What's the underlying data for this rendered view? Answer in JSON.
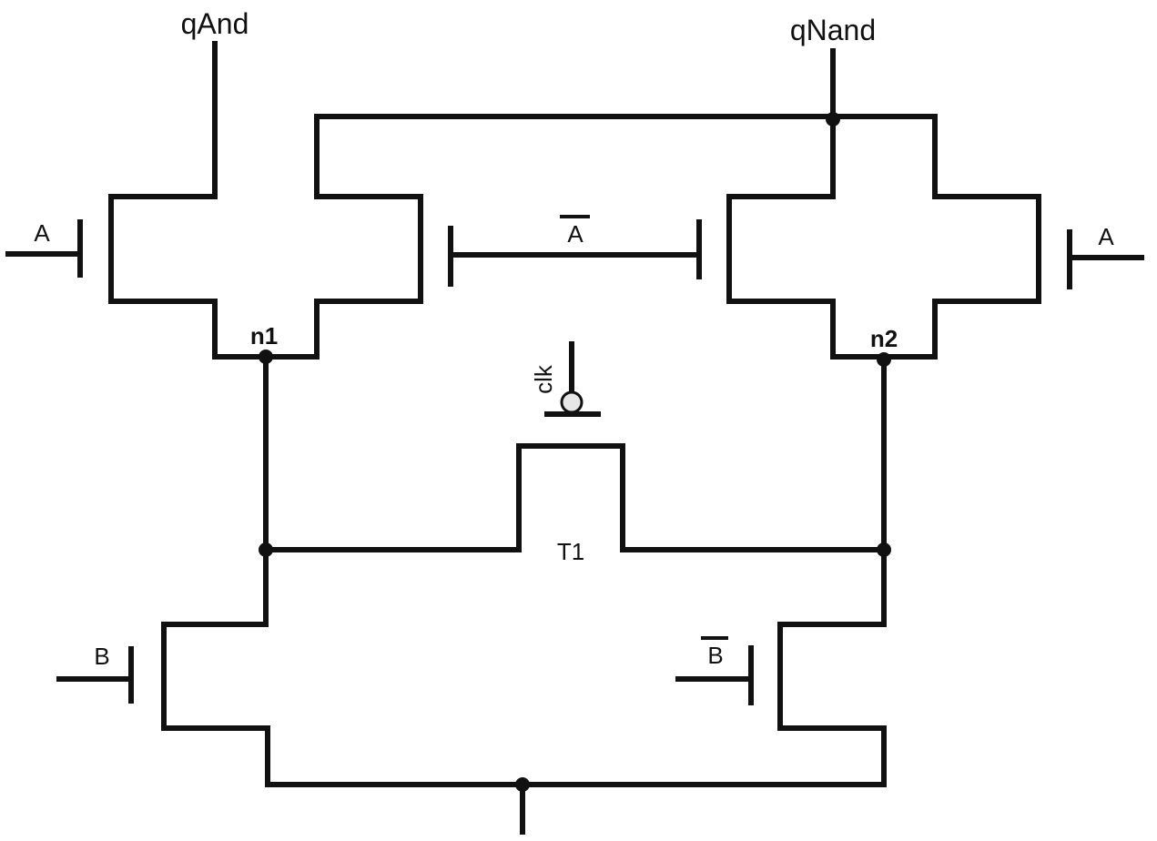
{
  "labels": {
    "q_and": "qAnd",
    "q_nand": "qNand",
    "input_a_left": "A",
    "input_a_bar": "A",
    "input_a_right": "A",
    "node_n1": "n1",
    "node_n2": "n2",
    "clock": "clk",
    "transistor_t1": "T1",
    "input_b": "B",
    "input_b_bar": "B"
  },
  "colors": {
    "wire": "#111111",
    "background": "#ffffff",
    "clock_bubble": "#e6e6e6"
  }
}
